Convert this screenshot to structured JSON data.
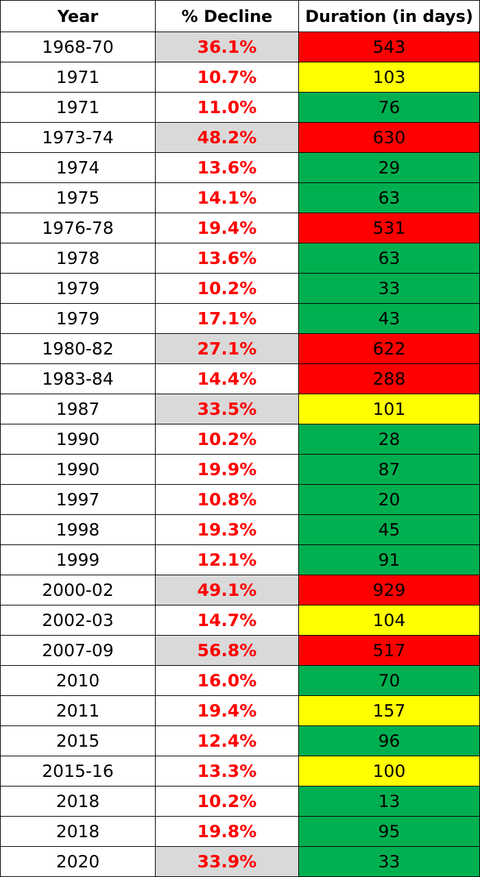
{
  "headers": {
    "year": "Year",
    "decline": "% Decline",
    "duration": "Duration (in days)"
  },
  "colors": {
    "red": "#ff0000",
    "yellow": "#ffff00",
    "green": "#00b050",
    "gray": "#d9d9d9",
    "decline_text": "#ff0000"
  },
  "rows": [
    {
      "year": "1968-70",
      "decline": "36.1%",
      "duration": "543",
      "decline_highlight": true,
      "duration_color": "red"
    },
    {
      "year": "1971",
      "decline": "10.7%",
      "duration": "103",
      "decline_highlight": false,
      "duration_color": "yellow"
    },
    {
      "year": "1971",
      "decline": "11.0%",
      "duration": "76",
      "decline_highlight": false,
      "duration_color": "green"
    },
    {
      "year": "1973-74",
      "decline": "48.2%",
      "duration": "630",
      "decline_highlight": true,
      "duration_color": "red"
    },
    {
      "year": "1974",
      "decline": "13.6%",
      "duration": "29",
      "decline_highlight": false,
      "duration_color": "green"
    },
    {
      "year": "1975",
      "decline": "14.1%",
      "duration": "63",
      "decline_highlight": false,
      "duration_color": "green"
    },
    {
      "year": "1976-78",
      "decline": "19.4%",
      "duration": "531",
      "decline_highlight": false,
      "duration_color": "red"
    },
    {
      "year": "1978",
      "decline": "13.6%",
      "duration": "63",
      "decline_highlight": false,
      "duration_color": "green"
    },
    {
      "year": "1979",
      "decline": "10.2%",
      "duration": "33",
      "decline_highlight": false,
      "duration_color": "green"
    },
    {
      "year": "1979",
      "decline": "17.1%",
      "duration": "43",
      "decline_highlight": false,
      "duration_color": "green"
    },
    {
      "year": "1980-82",
      "decline": "27.1%",
      "duration": "622",
      "decline_highlight": true,
      "duration_color": "red"
    },
    {
      "year": "1983-84",
      "decline": "14.4%",
      "duration": "288",
      "decline_highlight": false,
      "duration_color": "red"
    },
    {
      "year": "1987",
      "decline": "33.5%",
      "duration": "101",
      "decline_highlight": true,
      "duration_color": "yellow"
    },
    {
      "year": "1990",
      "decline": "10.2%",
      "duration": "28",
      "decline_highlight": false,
      "duration_color": "green"
    },
    {
      "year": "1990",
      "decline": "19.9%",
      "duration": "87",
      "decline_highlight": false,
      "duration_color": "green"
    },
    {
      "year": "1997",
      "decline": "10.8%",
      "duration": "20",
      "decline_highlight": false,
      "duration_color": "green"
    },
    {
      "year": "1998",
      "decline": "19.3%",
      "duration": "45",
      "decline_highlight": false,
      "duration_color": "green"
    },
    {
      "year": "1999",
      "decline": "12.1%",
      "duration": "91",
      "decline_highlight": false,
      "duration_color": "green"
    },
    {
      "year": "2000-02",
      "decline": "49.1%",
      "duration": "929",
      "decline_highlight": true,
      "duration_color": "red"
    },
    {
      "year": "2002-03",
      "decline": "14.7%",
      "duration": "104",
      "decline_highlight": false,
      "duration_color": "yellow"
    },
    {
      "year": "2007-09",
      "decline": "56.8%",
      "duration": "517",
      "decline_highlight": true,
      "duration_color": "red"
    },
    {
      "year": "2010",
      "decline": "16.0%",
      "duration": "70",
      "decline_highlight": false,
      "duration_color": "green"
    },
    {
      "year": "2011",
      "decline": "19.4%",
      "duration": "157",
      "decline_highlight": false,
      "duration_color": "yellow"
    },
    {
      "year": "2015",
      "decline": "12.4%",
      "duration": "96",
      "decline_highlight": false,
      "duration_color": "green"
    },
    {
      "year": "2015-16",
      "decline": "13.3%",
      "duration": "100",
      "decline_highlight": false,
      "duration_color": "yellow"
    },
    {
      "year": "2018",
      "decline": "10.2%",
      "duration": "13",
      "decline_highlight": false,
      "duration_color": "green"
    },
    {
      "year": "2018",
      "decline": "19.8%",
      "duration": "95",
      "decline_highlight": false,
      "duration_color": "green"
    },
    {
      "year": "2020",
      "decline": "33.9%",
      "duration": "33",
      "decline_highlight": true,
      "duration_color": "green"
    }
  ]
}
